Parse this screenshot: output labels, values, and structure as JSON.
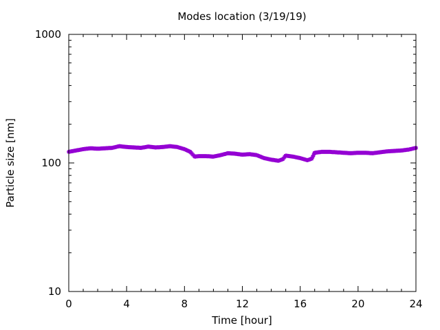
{
  "chart_data": {
    "type": "scatter",
    "title": "Modes location (3/19/19)",
    "xlabel": "Time [hour]",
    "ylabel": "Particle size [nm]",
    "xlim": [
      0,
      24
    ],
    "ylim": [
      10,
      1000
    ],
    "yscale": "log",
    "grid": false,
    "x_ticks": [
      0,
      4,
      8,
      12,
      16,
      20,
      24
    ],
    "x_tick_labels": [
      "0",
      "4",
      "8",
      "12",
      "16",
      "20",
      "24"
    ],
    "y_ticks": [
      10,
      100,
      1000
    ],
    "y_tick_labels": [
      "10",
      "100",
      "1000"
    ],
    "series": [
      {
        "color": "#9400d3",
        "marker": "star",
        "x": [
          0.0,
          0.5,
          1.0,
          1.5,
          2.0,
          2.5,
          3.0,
          3.5,
          4.0,
          4.5,
          5.0,
          5.5,
          6.0,
          6.5,
          7.0,
          7.5,
          8.0,
          8.4,
          8.7,
          9.0,
          9.5,
          10.0,
          10.5,
          11.0,
          11.5,
          12.0,
          12.5,
          13.0,
          13.5,
          14.0,
          14.5,
          14.8,
          15.0,
          15.5,
          16.0,
          16.5,
          16.8,
          17.0,
          17.5,
          18.0,
          18.5,
          19.0,
          19.5,
          20.0,
          20.5,
          21.0,
          21.5,
          22.0,
          22.5,
          23.0,
          23.5,
          24.0
        ],
        "y": [
          122,
          125,
          128,
          130,
          129,
          130,
          131,
          135,
          133,
          132,
          131,
          134,
          132,
          133,
          135,
          133,
          128,
          122,
          112,
          113,
          113,
          112,
          115,
          119,
          118,
          116,
          117,
          115,
          109,
          106,
          104,
          107,
          114,
          112,
          109,
          105,
          108,
          120,
          122,
          122,
          121,
          120,
          119,
          120,
          120,
          119,
          121,
          123,
          124,
          125,
          127,
          131
        ]
      }
    ]
  }
}
